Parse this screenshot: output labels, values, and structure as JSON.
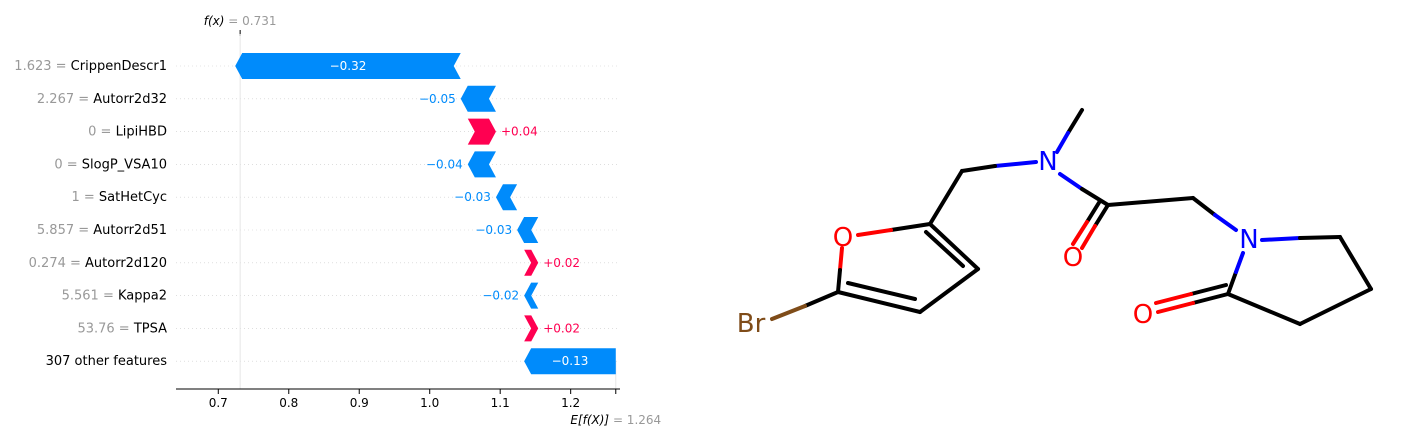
{
  "chart_data": {
    "type": "waterfall",
    "fx_label": "f(x)",
    "fx_value": "= 0.731",
    "ex_label": "E[f(X)]",
    "ex_value": "= 1.264",
    "base_value": 1.264,
    "final_value": 0.731,
    "xlim": [
      0.64,
      1.27
    ],
    "x_ticks": [
      "0.7",
      "0.8",
      "0.9",
      "1.0",
      "1.1",
      "1.2"
    ],
    "colors": {
      "positive": "#ff0051",
      "negative": "#008bfb",
      "muted": "#999999",
      "text": "#000000"
    },
    "features": [
      {
        "value": "1.623 =",
        "name": "CrippenDescr1",
        "contribution": -0.32,
        "label": "−0.32"
      },
      {
        "value": "2.267 =",
        "name": "Autorr2d32",
        "contribution": -0.05,
        "label": "−0.05"
      },
      {
        "value": "0 =",
        "name": "LipiHBD",
        "contribution": 0.04,
        "label": "+0.04"
      },
      {
        "value": "0 =",
        "name": "SlogP_VSA10",
        "contribution": -0.04,
        "label": "−0.04"
      },
      {
        "value": "1 =",
        "name": "SatHetCyc",
        "contribution": -0.03,
        "label": "−0.03"
      },
      {
        "value": "5.857 =",
        "name": "Autorr2d51",
        "contribution": -0.03,
        "label": "−0.03"
      },
      {
        "value": "0.274 =",
        "name": "Autorr2d120",
        "contribution": 0.02,
        "label": "+0.02"
      },
      {
        "value": "5.561 =",
        "name": "Kappa2",
        "contribution": -0.02,
        "label": "−0.02"
      },
      {
        "value": "53.76 =",
        "name": "TPSA",
        "contribution": 0.02,
        "label": "+0.02"
      },
      {
        "value": "",
        "name": "307 other features",
        "contribution": -0.13,
        "label": "−0.13"
      }
    ]
  },
  "molecule": {
    "atom_labels": [
      "N",
      "O",
      "N",
      "O",
      "O",
      "Br"
    ],
    "colors": {
      "bond": "#000000",
      "nitrogen": "#0000ff",
      "oxygen": "#ff0000",
      "bromine": "#7f4c19"
    }
  }
}
